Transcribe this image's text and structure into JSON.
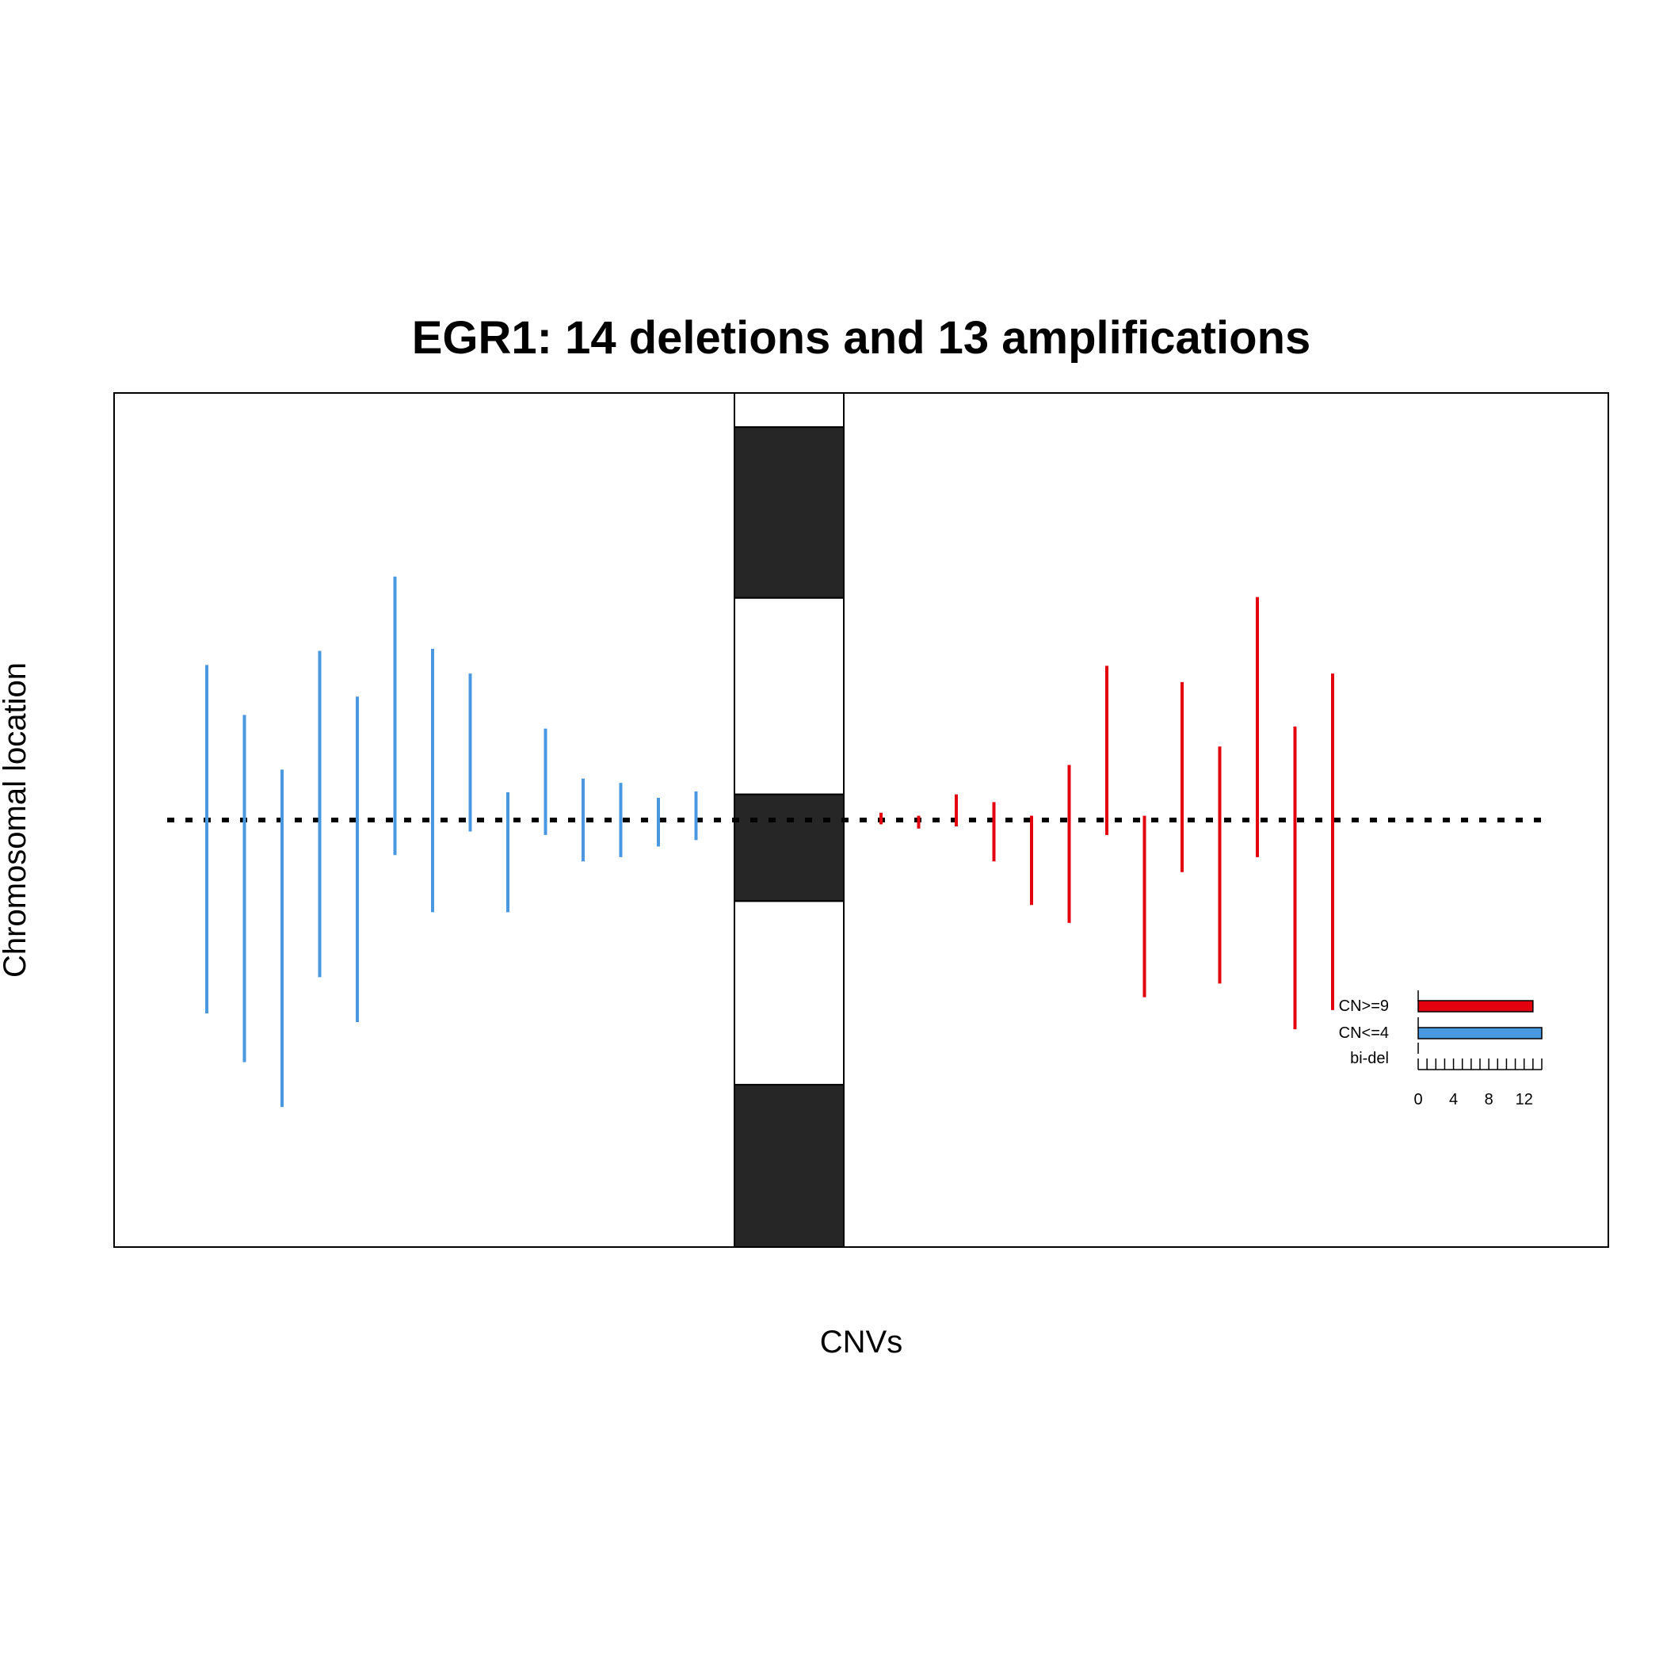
{
  "chart_data": {
    "type": "segment",
    "title": "EGR1: 14 deletions and 13 amplifications",
    "xlabel": "CNVs",
    "ylabel": "Chromosomal location",
    "ylim": [
      -1.0,
      1.0
    ],
    "gene_position": 0.0,
    "colors": {
      "deletion": "#4a98e0",
      "amplification": "#e3000f",
      "band_dark": "#262626",
      "band_light": "#ffffff",
      "gene_line": "#000000"
    },
    "ideogram_bands": [
      {
        "start": 1.0,
        "end": 0.92,
        "stain": "light"
      },
      {
        "start": 0.92,
        "end": 0.52,
        "stain": "dark"
      },
      {
        "start": 0.52,
        "end": 0.06,
        "stain": "light"
      },
      {
        "start": 0.06,
        "end": -0.19,
        "stain": "dark"
      },
      {
        "start": -0.19,
        "end": -0.62,
        "stain": "light"
      },
      {
        "start": -0.62,
        "end": -1.0,
        "stain": "dark"
      }
    ],
    "deletions": [
      {
        "top": 0.363,
        "bottom": -0.453
      },
      {
        "top": 0.246,
        "bottom": -0.567
      },
      {
        "top": 0.118,
        "bottom": -0.672
      },
      {
        "top": 0.396,
        "bottom": -0.368
      },
      {
        "top": 0.289,
        "bottom": -0.473
      },
      {
        "top": 0.57,
        "bottom": -0.082
      },
      {
        "top": 0.401,
        "bottom": -0.216
      },
      {
        "top": 0.343,
        "bottom": -0.027
      },
      {
        "top": 0.065,
        "bottom": -0.216
      },
      {
        "top": 0.214,
        "bottom": -0.035
      },
      {
        "top": 0.097,
        "bottom": -0.097
      },
      {
        "top": 0.087,
        "bottom": -0.087
      },
      {
        "top": 0.052,
        "bottom": -0.062
      },
      {
        "top": 0.067,
        "bottom": -0.047
      }
    ],
    "amplifications": [
      {
        "top": 0.017,
        "bottom": -0.01
      },
      {
        "top": 0.01,
        "bottom": -0.02
      },
      {
        "top": 0.06,
        "bottom": -0.015
      },
      {
        "top": 0.042,
        "bottom": -0.097
      },
      {
        "top": 0.01,
        "bottom": -0.199
      },
      {
        "top": 0.129,
        "bottom": -0.241
      },
      {
        "top": 0.361,
        "bottom": -0.035
      },
      {
        "top": 0.01,
        "bottom": -0.415
      },
      {
        "top": 0.323,
        "bottom": -0.122
      },
      {
        "top": 0.172,
        "bottom": -0.383
      },
      {
        "top": 0.522,
        "bottom": -0.087
      },
      {
        "top": 0.219,
        "bottom": -0.49
      },
      {
        "top": 0.343,
        "bottom": -0.445
      }
    ],
    "inset_bar": {
      "categories": [
        "CN>=9",
        "CN<=4",
        "bi-del"
      ],
      "values": [
        13,
        14,
        0
      ],
      "colors": [
        "#e3000f",
        "#4a98e0",
        "#4a98e0"
      ],
      "ticks": [
        0,
        4,
        8,
        12
      ],
      "xlim": [
        0,
        14
      ]
    }
  }
}
